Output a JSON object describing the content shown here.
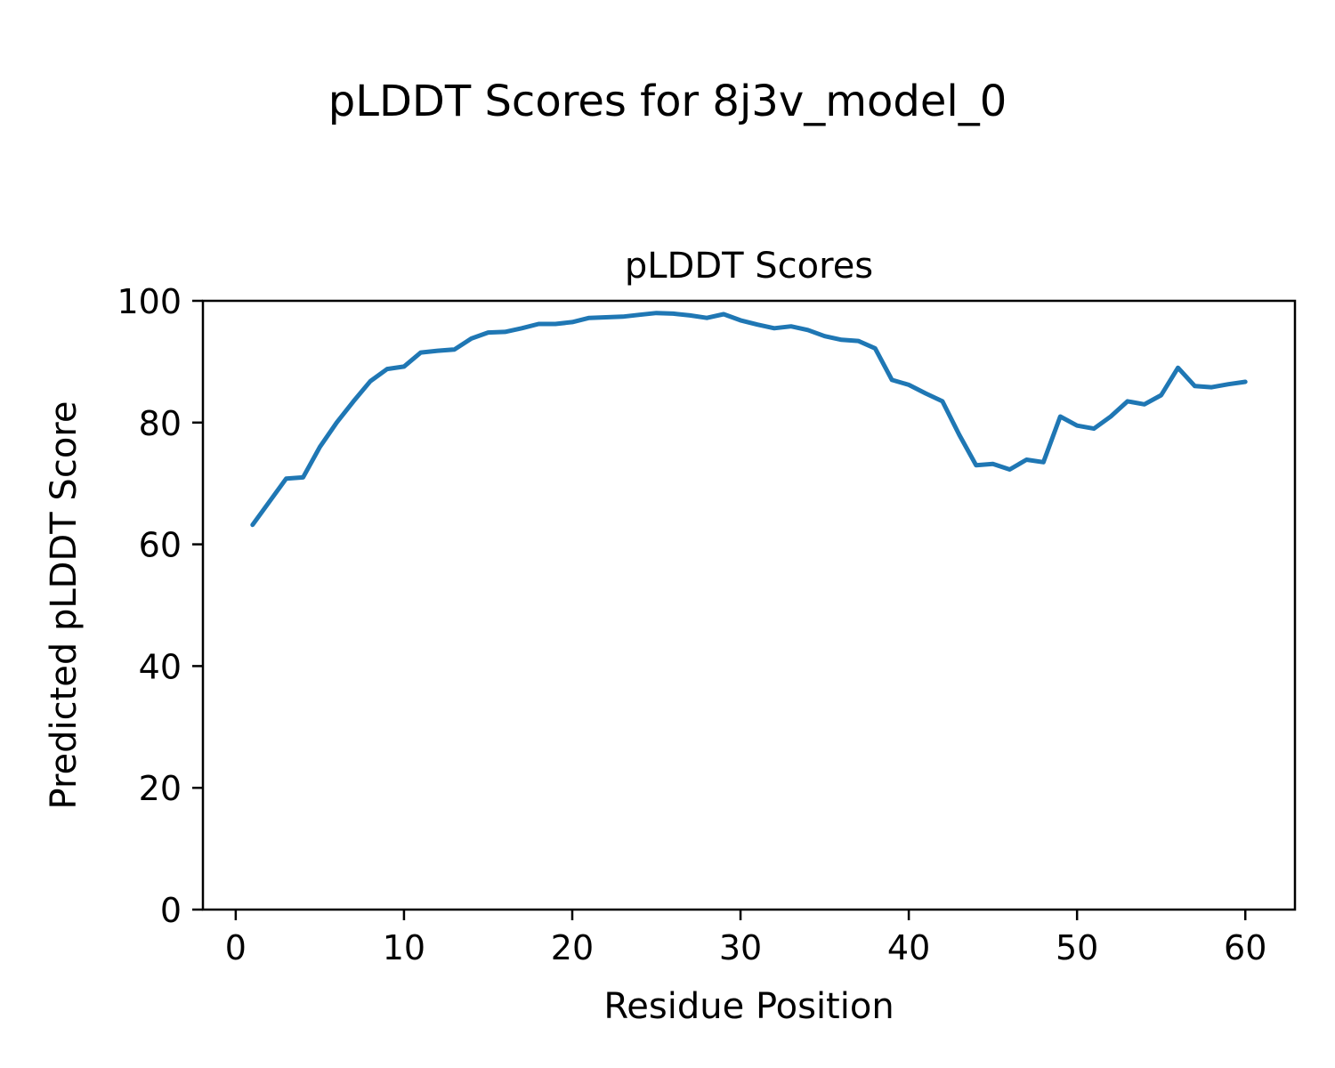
{
  "figure": {
    "suptitle": "pLDDT Scores for 8j3v_model_0",
    "background": "#ffffff"
  },
  "chart_data": {
    "type": "line",
    "title": "pLDDT Scores",
    "xlabel": "Residue Position",
    "ylabel": "Predicted pLDDT Score",
    "xlim": [
      -1.95,
      62.95
    ],
    "ylim": [
      0,
      100
    ],
    "xticks": [
      0,
      10,
      20,
      30,
      40,
      50,
      60
    ],
    "yticks": [
      0,
      20,
      40,
      60,
      80,
      100
    ],
    "grid": false,
    "legend": "none",
    "line_color": "#1f77b4",
    "series": [
      {
        "name": "pLDDT",
        "x": [
          1,
          2,
          3,
          4,
          5,
          6,
          7,
          8,
          9,
          10,
          11,
          12,
          13,
          14,
          15,
          16,
          17,
          18,
          19,
          20,
          21,
          22,
          23,
          24,
          25,
          26,
          27,
          28,
          29,
          30,
          31,
          32,
          33,
          34,
          35,
          36,
          37,
          38,
          39,
          40,
          41,
          42,
          43,
          44,
          45,
          46,
          47,
          48,
          49,
          50,
          51,
          52,
          53,
          54,
          55,
          56,
          57,
          58,
          59,
          60
        ],
        "y": [
          63.2,
          67.0,
          70.8,
          71.0,
          76.0,
          80.0,
          83.5,
          86.8,
          88.8,
          89.2,
          91.5,
          91.8,
          92.0,
          93.8,
          94.8,
          94.9,
          95.5,
          96.2,
          96.2,
          96.5,
          97.2,
          97.3,
          97.4,
          97.7,
          98.0,
          97.9,
          97.6,
          97.2,
          97.8,
          96.8,
          96.1,
          95.5,
          95.8,
          95.2,
          94.2,
          93.6,
          93.4,
          92.2,
          87.0,
          86.2,
          84.8,
          83.5,
          78.0,
          73.0,
          73.2,
          72.3,
          73.9,
          73.5,
          81.0,
          79.5,
          79.0,
          81.0,
          83.5,
          83.0,
          84.5,
          89.0,
          86.0,
          85.8,
          86.3,
          86.7
        ]
      }
    ]
  }
}
